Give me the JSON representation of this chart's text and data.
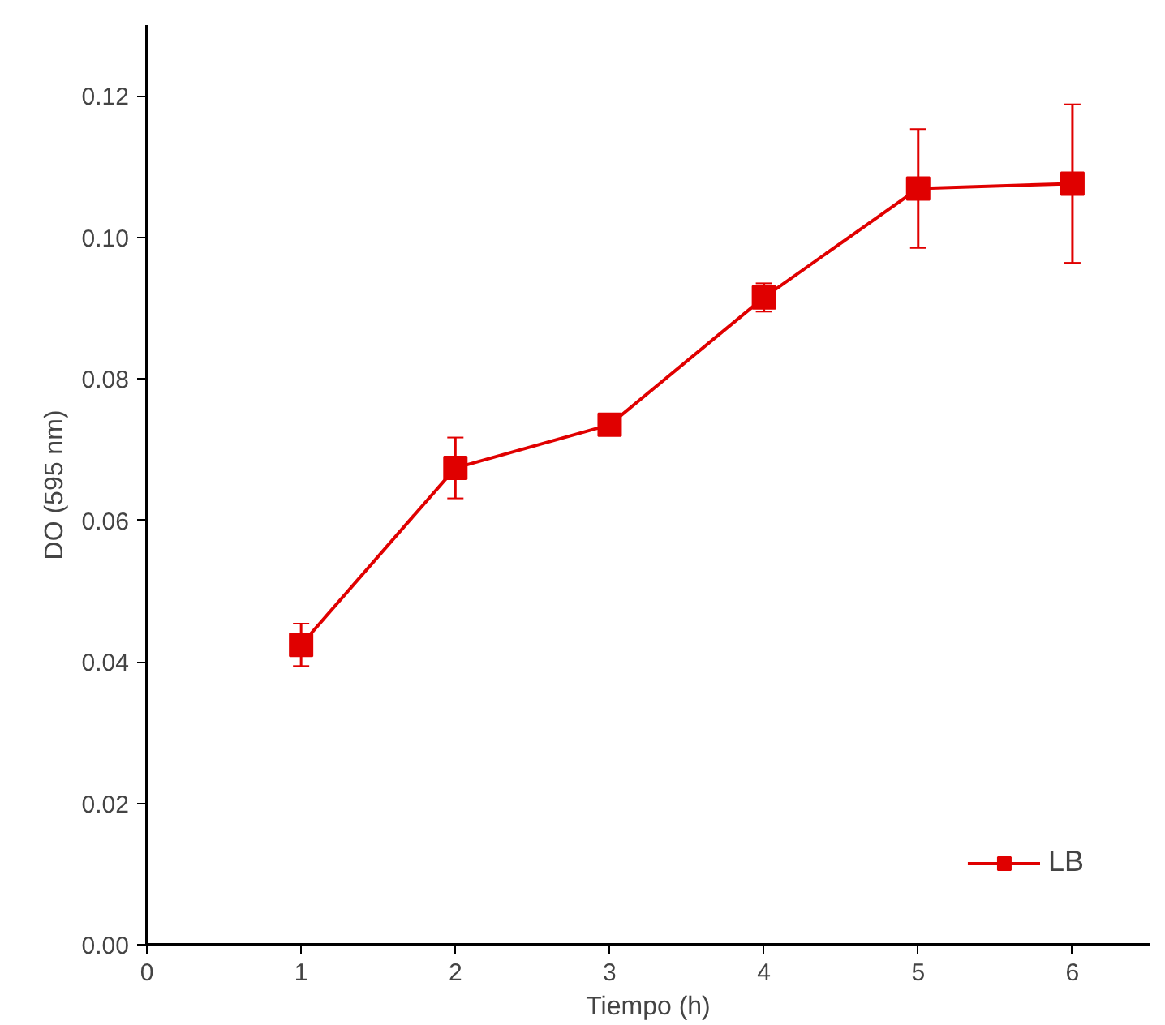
{
  "chart_data": {
    "type": "line",
    "xlabel": "Tiempo (h)",
    "ylabel": "DO (595 nm)",
    "x": [
      1,
      2,
      3,
      4,
      5,
      6
    ],
    "series": [
      {
        "name": "LB",
        "color": "#e00000",
        "values": [
          0.0424,
          0.0674,
          0.0735,
          0.0915,
          0.1069,
          0.1076
        ],
        "errors": [
          0.003,
          0.0043,
          0.001,
          0.002,
          0.0084,
          0.0112
        ]
      }
    ],
    "xlim": [
      0,
      6.5
    ],
    "ylim": [
      0,
      0.13
    ],
    "xticks": [
      0,
      1,
      2,
      3,
      4,
      5,
      6
    ],
    "yticks": [
      {
        "value": 0,
        "label": "0.00"
      },
      {
        "value": 0.02,
        "label": "0.02"
      },
      {
        "value": 0.04,
        "label": "0.04"
      },
      {
        "value": 0.06,
        "label": "0.06"
      },
      {
        "value": 0.08,
        "label": "0.08"
      },
      {
        "value": 0.1,
        "label": "0.10"
      },
      {
        "value": 0.12,
        "label": "0.12"
      }
    ],
    "marker": "square",
    "line_style": "solid",
    "grid": false,
    "legend": "bottom right"
  }
}
